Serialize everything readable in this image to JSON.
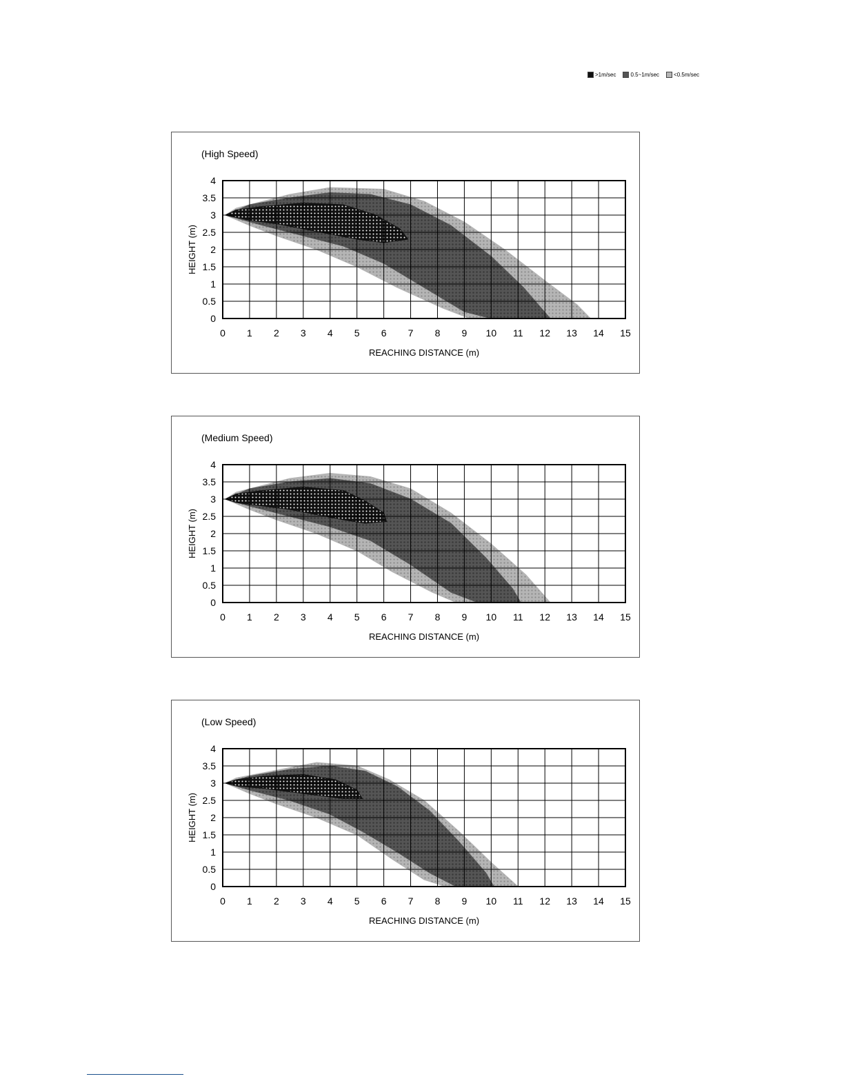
{
  "legend": {
    "items": [
      {
        "label": ">1m/sec",
        "color": "#111111"
      },
      {
        "label": "0.5~1m/sec",
        "color": "#555555"
      },
      {
        "label": "<0.5m/sec",
        "color": "#b5b5b5"
      }
    ]
  },
  "chart_data": [
    {
      "type": "area",
      "title": "(High Speed)",
      "xlabel": "REACHING DISTANCE (m)",
      "ylabel": "HEIGHT (m)",
      "xlim": [
        0,
        15
      ],
      "ylim": [
        0,
        4
      ],
      "xticks": [
        "0",
        "1",
        "2",
        "3",
        "4",
        "5",
        "6",
        "7",
        "8",
        "9",
        "10",
        "11",
        "12",
        "13",
        "14",
        "15"
      ],
      "yticks": [
        "0",
        "0.5",
        "1",
        "1.5",
        "2",
        "2.5",
        "3",
        "3.5",
        "4"
      ],
      "grid": true,
      "series": [
        {
          "name": "<0.5m/sec",
          "color": "#b5b5b5",
          "upper": [
            [
              0.1,
              3.0
            ],
            [
              0.5,
              3.2
            ],
            [
              1.5,
              3.4
            ],
            [
              2.5,
              3.6
            ],
            [
              4,
              3.8
            ],
            [
              6,
              3.75
            ],
            [
              7.5,
              3.4
            ],
            [
              9,
              2.8
            ],
            [
              10.5,
              2.0
            ],
            [
              12,
              1.1
            ],
            [
              13.2,
              0.4
            ],
            [
              13.7,
              0
            ]
          ],
          "lower": [
            [
              9.2,
              0
            ],
            [
              8.2,
              0.3
            ],
            [
              6.5,
              0.9
            ],
            [
              5,
              1.5
            ],
            [
              3.5,
              2.0
            ],
            [
              2,
              2.4
            ],
            [
              1,
              2.7
            ],
            [
              0.1,
              3.0
            ]
          ]
        },
        {
          "name": "0.5~1m/sec",
          "color": "#555555",
          "upper": [
            [
              0.1,
              3.0
            ],
            [
              1,
              3.3
            ],
            [
              2.5,
              3.5
            ],
            [
              4,
              3.65
            ],
            [
              5.5,
              3.6
            ],
            [
              7,
              3.3
            ],
            [
              8.5,
              2.7
            ],
            [
              10,
              1.8
            ],
            [
              11.2,
              0.9
            ],
            [
              12.2,
              0
            ]
          ],
          "lower": [
            [
              11,
              0
            ],
            [
              10,
              0
            ],
            [
              9,
              0.2
            ],
            [
              7.5,
              0.9
            ],
            [
              6,
              1.6
            ],
            [
              4.5,
              2.1
            ],
            [
              3,
              2.4
            ],
            [
              1.5,
              2.7
            ],
            [
              0.1,
              3.0
            ]
          ]
        },
        {
          "name": ">1m/sec",
          "color": "#111111",
          "upper": [
            [
              0.1,
              3.0
            ],
            [
              0.5,
              3.15
            ],
            [
              1.5,
              3.25
            ],
            [
              3,
              3.35
            ],
            [
              4.5,
              3.3
            ],
            [
              5.7,
              3.0
            ],
            [
              6.6,
              2.6
            ],
            [
              6.9,
              2.3
            ]
          ],
          "lower": [
            [
              6.9,
              2.3
            ],
            [
              6,
              2.2
            ],
            [
              5,
              2.3
            ],
            [
              4,
              2.45
            ],
            [
              3,
              2.6
            ],
            [
              2,
              2.75
            ],
            [
              1,
              2.85
            ],
            [
              0.1,
              3.0
            ]
          ]
        }
      ]
    },
    {
      "type": "area",
      "title": "(Medium Speed)",
      "xlabel": "REACHING DISTANCE (m)",
      "ylabel": "HEIGHT (m)",
      "xlim": [
        0,
        15
      ],
      "ylim": [
        0,
        4
      ],
      "xticks": [
        "0",
        "1",
        "2",
        "3",
        "4",
        "5",
        "6",
        "7",
        "8",
        "9",
        "10",
        "11",
        "12",
        "13",
        "14",
        "15"
      ],
      "yticks": [
        "0",
        "0.5",
        "1",
        "1.5",
        "2",
        "2.5",
        "3",
        "3.5",
        "4"
      ],
      "grid": true,
      "series": [
        {
          "name": "<0.5m/sec",
          "color": "#b5b5b5",
          "upper": [
            [
              0.1,
              3.0
            ],
            [
              0.5,
              3.2
            ],
            [
              1.5,
              3.4
            ],
            [
              2.5,
              3.6
            ],
            [
              4,
              3.75
            ],
            [
              5.5,
              3.65
            ],
            [
              7,
              3.3
            ],
            [
              8.5,
              2.6
            ],
            [
              10,
              1.7
            ],
            [
              11.3,
              0.8
            ],
            [
              12.2,
              0
            ]
          ],
          "lower": [
            [
              8.7,
              0
            ],
            [
              7.8,
              0.3
            ],
            [
              6.3,
              0.9
            ],
            [
              5,
              1.5
            ],
            [
              3.5,
              2.0
            ],
            [
              2,
              2.4
            ],
            [
              1,
              2.7
            ],
            [
              0.1,
              3.0
            ]
          ]
        },
        {
          "name": "0.5~1m/sec",
          "color": "#555555",
          "upper": [
            [
              0.1,
              3.0
            ],
            [
              1,
              3.3
            ],
            [
              2.5,
              3.5
            ],
            [
              4,
              3.6
            ],
            [
              5.5,
              3.45
            ],
            [
              7,
              3.0
            ],
            [
              8.5,
              2.3
            ],
            [
              9.8,
              1.3
            ],
            [
              10.8,
              0.4
            ],
            [
              11.1,
              0
            ]
          ],
          "lower": [
            [
              10.4,
              0
            ],
            [
              9.5,
              0
            ],
            [
              8.5,
              0.3
            ],
            [
              7,
              1.1
            ],
            [
              5.5,
              1.8
            ],
            [
              4,
              2.2
            ],
            [
              2.5,
              2.5
            ],
            [
              1,
              2.8
            ],
            [
              0.1,
              3.0
            ]
          ]
        },
        {
          "name": ">1m/sec",
          "color": "#111111",
          "upper": [
            [
              0.1,
              3.0
            ],
            [
              0.5,
              3.15
            ],
            [
              1.5,
              3.25
            ],
            [
              3,
              3.35
            ],
            [
              4.5,
              3.25
            ],
            [
              5.3,
              2.95
            ],
            [
              6,
              2.6
            ],
            [
              6.1,
              2.35
            ]
          ],
          "lower": [
            [
              6.1,
              2.35
            ],
            [
              5.3,
              2.3
            ],
            [
              4.5,
              2.4
            ],
            [
              3.5,
              2.55
            ],
            [
              2.5,
              2.7
            ],
            [
              1.5,
              2.8
            ],
            [
              0.5,
              2.9
            ],
            [
              0.1,
              3.0
            ]
          ]
        }
      ]
    },
    {
      "type": "area",
      "title": "(Low Speed)",
      "xlabel": "REACHING DISTANCE (m)",
      "ylabel": "HEIGHT (m)",
      "xlim": [
        0,
        15
      ],
      "ylim": [
        0,
        4
      ],
      "xticks": [
        "0",
        "1",
        "2",
        "3",
        "4",
        "5",
        "6",
        "7",
        "8",
        "9",
        "10",
        "11",
        "12",
        "13",
        "14",
        "15"
      ],
      "yticks": [
        "0",
        "0.5",
        "1",
        "1.5",
        "2",
        "2.5",
        "3",
        "3.5",
        "4"
      ],
      "grid": true,
      "series": [
        {
          "name": "<0.5m/sec",
          "color": "#b5b5b5",
          "upper": [
            [
              0.1,
              3.0
            ],
            [
              0.5,
              3.15
            ],
            [
              1.5,
              3.3
            ],
            [
              2.5,
              3.45
            ],
            [
              3.5,
              3.6
            ],
            [
              5,
              3.5
            ],
            [
              6.2,
              3.1
            ],
            [
              7.5,
              2.5
            ],
            [
              8.8,
              1.6
            ],
            [
              10,
              0.7
            ],
            [
              11,
              0
            ]
          ],
          "lower": [
            [
              8.3,
              0
            ],
            [
              7.5,
              0.2
            ],
            [
              6.3,
              0.8
            ],
            [
              5,
              1.5
            ],
            [
              3.5,
              2.0
            ],
            [
              2,
              2.4
            ],
            [
              1,
              2.7
            ],
            [
              0.1,
              3.0
            ]
          ]
        },
        {
          "name": "0.5~1m/sec",
          "color": "#555555",
          "upper": [
            [
              0.1,
              3.0
            ],
            [
              1,
              3.2
            ],
            [
              2.5,
              3.4
            ],
            [
              4,
              3.5
            ],
            [
              5.3,
              3.35
            ],
            [
              6.5,
              2.9
            ],
            [
              7.7,
              2.2
            ],
            [
              8.8,
              1.3
            ],
            [
              9.8,
              0.4
            ],
            [
              10.1,
              0
            ]
          ],
          "lower": [
            [
              9.5,
              0
            ],
            [
              8.7,
              0
            ],
            [
              7.7,
              0.4
            ],
            [
              6.5,
              1.0
            ],
            [
              5.2,
              1.6
            ],
            [
              4,
              2.1
            ],
            [
              2.5,
              2.5
            ],
            [
              1,
              2.8
            ],
            [
              0.1,
              3.0
            ]
          ]
        },
        {
          "name": ">1m/sec",
          "color": "#111111",
          "upper": [
            [
              0.1,
              3.0
            ],
            [
              0.5,
              3.1
            ],
            [
              1.5,
              3.2
            ],
            [
              3,
              3.25
            ],
            [
              4.2,
              3.1
            ],
            [
              5,
              2.8
            ],
            [
              5.2,
              2.55
            ]
          ],
          "lower": [
            [
              5.2,
              2.55
            ],
            [
              4.5,
              2.55
            ],
            [
              3.5,
              2.65
            ],
            [
              2.5,
              2.75
            ],
            [
              1.5,
              2.85
            ],
            [
              0.5,
              2.92
            ],
            [
              0.1,
              3.0
            ]
          ]
        }
      ]
    }
  ]
}
